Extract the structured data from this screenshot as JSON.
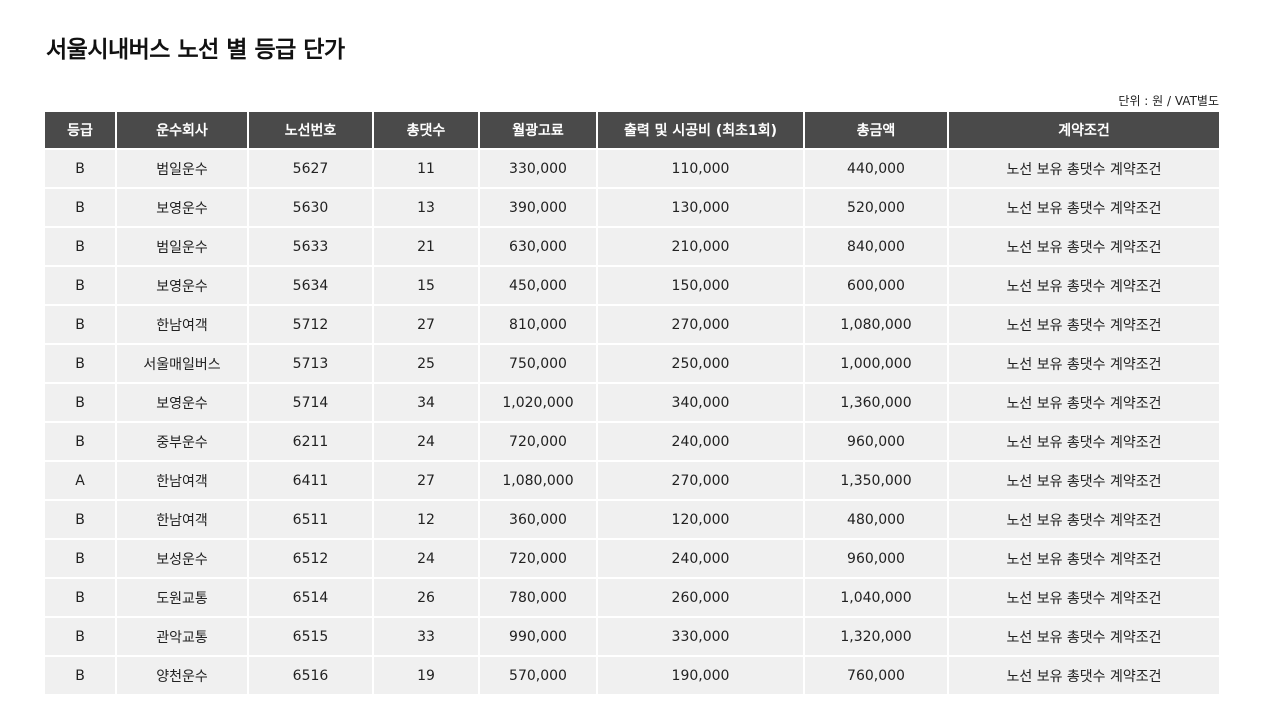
{
  "page": {
    "title": "서울시내버스 노선 별 등급 단가",
    "unit_note": "단위 : 원 / VAT별도"
  },
  "table": {
    "headers": [
      "등급",
      "운수회사",
      "노선번호",
      "총댓수",
      "월광고료",
      "출력 및 시공비 (최초1회)",
      "총금액",
      "계약조건"
    ],
    "rows": [
      [
        "B",
        "범일운수",
        "5627",
        "11",
        "330,000",
        "110,000",
        "440,000",
        "노선 보유 총댓수 계약조건"
      ],
      [
        "B",
        "보영운수",
        "5630",
        "13",
        "390,000",
        "130,000",
        "520,000",
        "노선 보유 총댓수 계약조건"
      ],
      [
        "B",
        "범일운수",
        "5633",
        "21",
        "630,000",
        "210,000",
        "840,000",
        "노선 보유 총댓수 계약조건"
      ],
      [
        "B",
        "보영운수",
        "5634",
        "15",
        "450,000",
        "150,000",
        "600,000",
        "노선 보유 총댓수 계약조건"
      ],
      [
        "B",
        "한남여객",
        "5712",
        "27",
        "810,000",
        "270,000",
        "1,080,000",
        "노선 보유 총댓수 계약조건"
      ],
      [
        "B",
        "서울매일버스",
        "5713",
        "25",
        "750,000",
        "250,000",
        "1,000,000",
        "노선 보유 총댓수 계약조건"
      ],
      [
        "B",
        "보영운수",
        "5714",
        "34",
        "1,020,000",
        "340,000",
        "1,360,000",
        "노선 보유 총댓수 계약조건"
      ],
      [
        "B",
        "중부운수",
        "6211",
        "24",
        "720,000",
        "240,000",
        "960,000",
        "노선 보유 총댓수 계약조건"
      ],
      [
        "A",
        "한남여객",
        "6411",
        "27",
        "1,080,000",
        "270,000",
        "1,350,000",
        "노선 보유 총댓수 계약조건"
      ],
      [
        "B",
        "한남여객",
        "6511",
        "12",
        "360,000",
        "120,000",
        "480,000",
        "노선 보유 총댓수 계약조건"
      ],
      [
        "B",
        "보성운수",
        "6512",
        "24",
        "720,000",
        "240,000",
        "960,000",
        "노선 보유 총댓수 계약조건"
      ],
      [
        "B",
        "도원교통",
        "6514",
        "26",
        "780,000",
        "260,000",
        "1,040,000",
        "노선 보유 총댓수 계약조건"
      ],
      [
        "B",
        "관악교통",
        "6515",
        "33",
        "990,000",
        "330,000",
        "1,320,000",
        "노선 보유 총댓수 계약조건"
      ],
      [
        "B",
        "양천운수",
        "6516",
        "19",
        "570,000",
        "190,000",
        "760,000",
        "노선 보유 총댓수 계약조건"
      ]
    ]
  },
  "colors": {
    "header_bg": "#4a4a4a",
    "header_text": "#ffffff",
    "row_bg": "#f0f0f0",
    "text": "#222222"
  }
}
